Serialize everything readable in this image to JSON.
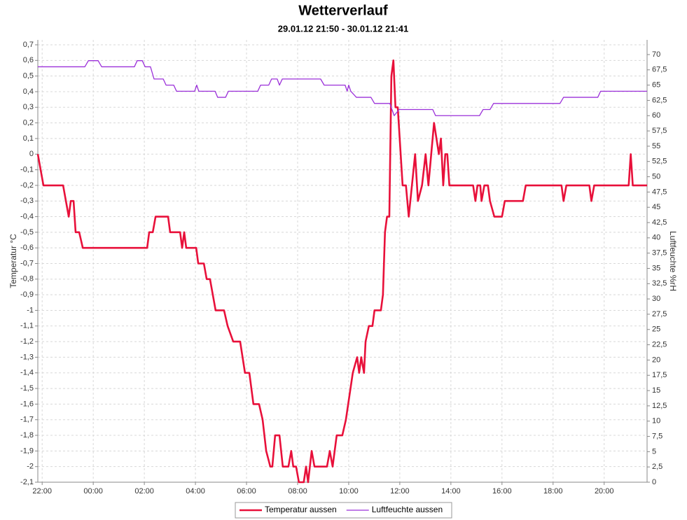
{
  "chart_data": {
    "type": "line",
    "title": "Wetterverlauf",
    "subtitle": "29.01.12 21:50 - 30.01.12 21:41",
    "y_label": "Temperatur °C",
    "y2_label": "Luftfeuchte %rH",
    "grid": true,
    "legend": "bottom",
    "xlim": [
      21.83,
      45.68
    ],
    "xticks": [
      {
        "value": 22,
        "label": "22:00"
      },
      {
        "value": 24,
        "label": "00:00"
      },
      {
        "value": 26,
        "label": "02:00"
      },
      {
        "value": 28,
        "label": "04:00"
      },
      {
        "value": 30,
        "label": "06:00"
      },
      {
        "value": 32,
        "label": "08:00"
      },
      {
        "value": 34,
        "label": "10:00"
      },
      {
        "value": 36,
        "label": "12:00"
      },
      {
        "value": 38,
        "label": "14:00"
      },
      {
        "value": 40,
        "label": "16:00"
      },
      {
        "value": 42,
        "label": "18:00"
      },
      {
        "value": 44,
        "label": "20:00"
      }
    ],
    "ylim": [
      -2.1,
      0.7
    ],
    "yticks": [
      {
        "value": 0.7,
        "label": "0,7"
      },
      {
        "value": 0.6,
        "label": "0,6"
      },
      {
        "value": 0.5,
        "label": "0,5"
      },
      {
        "value": 0.4,
        "label": "0,4"
      },
      {
        "value": 0.3,
        "label": "0,3"
      },
      {
        "value": 0.2,
        "label": "0,2"
      },
      {
        "value": 0.1,
        "label": "0,1"
      },
      0,
      {
        "value": -0.1,
        "label": "-0,1"
      },
      {
        "value": -0.2,
        "label": "-0,2"
      },
      {
        "value": -0.3,
        "label": "-0,3"
      },
      {
        "value": -0.4,
        "label": "-0,4"
      },
      {
        "value": -0.5,
        "label": "-0,5"
      },
      {
        "value": -0.6,
        "label": "-0,6"
      },
      {
        "value": -0.7,
        "label": "-0,7"
      },
      {
        "value": -0.8,
        "label": "-0,8"
      },
      {
        "value": -0.9,
        "label": "-0,9"
      },
      -1,
      {
        "value": -1.1,
        "label": "-1,1"
      },
      {
        "value": -1.2,
        "label": "-1,2"
      },
      {
        "value": -1.3,
        "label": "-1,3"
      },
      {
        "value": -1.4,
        "label": "-1,4"
      },
      {
        "value": -1.5,
        "label": "-1,5"
      },
      {
        "value": -1.6,
        "label": "-1,6"
      },
      {
        "value": -1.7,
        "label": "-1,7"
      },
      {
        "value": -1.8,
        "label": "-1,8"
      },
      {
        "value": -1.9,
        "label": "-1,9"
      },
      -2,
      {
        "value": -2.1,
        "label": "-2,1"
      }
    ],
    "y2lim": [
      0,
      71.6
    ],
    "y2ticks": [
      0,
      {
        "value": 2.5,
        "label": "2,5"
      },
      5,
      {
        "value": 7.5,
        "label": "7,5"
      },
      10,
      {
        "value": 12.5,
        "label": "12,5"
      },
      15,
      {
        "value": 17.5,
        "label": "17,5"
      },
      20,
      {
        "value": 22.5,
        "label": "22,5"
      },
      25,
      {
        "value": 27.5,
        "label": "27,5"
      },
      30,
      {
        "value": 32.5,
        "label": "32,5"
      },
      35,
      {
        "value": 37.5,
        "label": "37,5"
      },
      40,
      {
        "value": 42.5,
        "label": "42,5"
      },
      45,
      {
        "value": 47.5,
        "label": "47,5"
      },
      50,
      {
        "value": 52.5,
        "label": "52,5"
      },
      55,
      {
        "value": 57.5,
        "label": "57,5"
      },
      60,
      {
        "value": 62.5,
        "label": "62,5"
      },
      65,
      {
        "value": 67.5,
        "label": "67,5"
      },
      70
    ],
    "series": [
      {
        "name": "Temperatur aussen",
        "color": "#e8103a",
        "x": [
          21.83,
          22.05,
          22.82,
          22.93,
          23.04,
          23.12,
          23.23,
          23.31,
          23.45,
          23.59,
          26.11,
          26.19,
          26.33,
          26.44,
          26.93,
          27.01,
          27.4,
          27.48,
          27.56,
          27.64,
          28.03,
          28.11,
          28.33,
          28.44,
          28.57,
          28.68,
          28.79,
          29.12,
          29.26,
          29.48,
          29.75,
          29.94,
          30.11,
          30.27,
          30.49,
          30.63,
          30.77,
          30.93,
          31.01,
          31.12,
          31.29,
          31.42,
          31.64,
          31.75,
          31.83,
          31.94,
          32.05,
          32.24,
          32.33,
          32.41,
          32.55,
          32.66,
          33.15,
          33.26,
          33.37,
          33.53,
          33.75,
          33.89,
          34.16,
          34.33,
          34.41,
          34.49,
          34.6,
          34.66,
          34.79,
          34.93,
          35.01,
          35.26,
          35.34,
          35.42,
          35.5,
          35.59,
          35.67,
          35.75,
          35.83,
          35.92,
          36.11,
          36.24,
          36.35,
          36.6,
          36.71,
          36.87,
          37.01,
          37.12,
          37.34,
          37.53,
          37.61,
          37.7,
          37.78,
          37.86,
          37.94,
          38.87,
          38.96,
          39.04,
          39.15,
          39.2,
          39.31,
          39.45,
          39.53,
          39.7,
          40.0,
          40.11,
          40.82,
          40.93,
          42.33,
          42.41,
          42.52,
          43.42,
          43.5,
          43.61,
          44.96,
          45.04,
          45.12,
          45.68
        ],
        "values": [
          0,
          -0.2,
          -0.2,
          -0.3,
          -0.4,
          -0.3,
          -0.3,
          -0.5,
          -0.5,
          -0.6,
          -0.6,
          -0.5,
          -0.5,
          -0.4,
          -0.4,
          -0.5,
          -0.5,
          -0.6,
          -0.5,
          -0.6,
          -0.6,
          -0.7,
          -0.7,
          -0.8,
          -0.8,
          -0.9,
          -1.0,
          -1.0,
          -1.1,
          -1.2,
          -1.2,
          -1.4,
          -1.4,
          -1.6,
          -1.6,
          -1.7,
          -1.9,
          -2.0,
          -2.0,
          -1.8,
          -1.8,
          -2.0,
          -2.0,
          -1.9,
          -2.0,
          -2.0,
          -2.1,
          -2.1,
          -2.0,
          -2.1,
          -1.9,
          -2.0,
          -2.0,
          -1.9,
          -2.0,
          -1.8,
          -1.8,
          -1.7,
          -1.4,
          -1.3,
          -1.4,
          -1.3,
          -1.4,
          -1.2,
          -1.1,
          -1.1,
          -1.0,
          -1.0,
          -0.9,
          -0.5,
          -0.4,
          -0.4,
          0.5,
          0.6,
          0.3,
          0.3,
          -0.2,
          -0.2,
          -0.4,
          0.0,
          -0.3,
          -0.2,
          0.0,
          -0.2,
          0.2,
          0.0,
          0.1,
          -0.2,
          0.0,
          0.0,
          -0.2,
          -0.2,
          -0.3,
          -0.2,
          -0.2,
          -0.3,
          -0.2,
          -0.2,
          -0.3,
          -0.4,
          -0.4,
          -0.3,
          -0.3,
          -0.2,
          -0.2,
          -0.3,
          -0.2,
          -0.2,
          -0.3,
          -0.2,
          -0.2,
          0.0,
          -0.2,
          -0.2
        ]
      },
      {
        "name": "Luftfeuchte aussen",
        "color": "#9b30d9",
        "axis": "y2",
        "x": [
          21.83,
          23.67,
          23.81,
          24.19,
          24.33,
          25.61,
          25.72,
          25.92,
          26.03,
          26.24,
          26.38,
          26.74,
          26.85,
          27.15,
          27.26,
          27.97,
          28.05,
          28.13,
          28.77,
          28.87,
          29.18,
          29.29,
          30.44,
          30.55,
          30.87,
          30.98,
          31.2,
          31.29,
          31.4,
          32.9,
          33.04,
          33.86,
          33.94,
          34.0,
          34.08,
          34.3,
          34.87,
          35.01,
          35.61,
          35.78,
          35.97,
          37.29,
          37.4,
          39.12,
          39.26,
          39.53,
          39.67,
          42.27,
          42.41,
          43.75,
          43.86,
          45.68
        ],
        "values": [
          68,
          68,
          69,
          69,
          68,
          68,
          69,
          69,
          68,
          68,
          66,
          66,
          65,
          65,
          64,
          64,
          65,
          64,
          64,
          63,
          63,
          64,
          64,
          65,
          65,
          66,
          66,
          65,
          66,
          66,
          65,
          65,
          64,
          65,
          64,
          63,
          63,
          62,
          62,
          60,
          61,
          61,
          60,
          60,
          61,
          61,
          62,
          62,
          63,
          63,
          64,
          64
        ]
      }
    ]
  }
}
